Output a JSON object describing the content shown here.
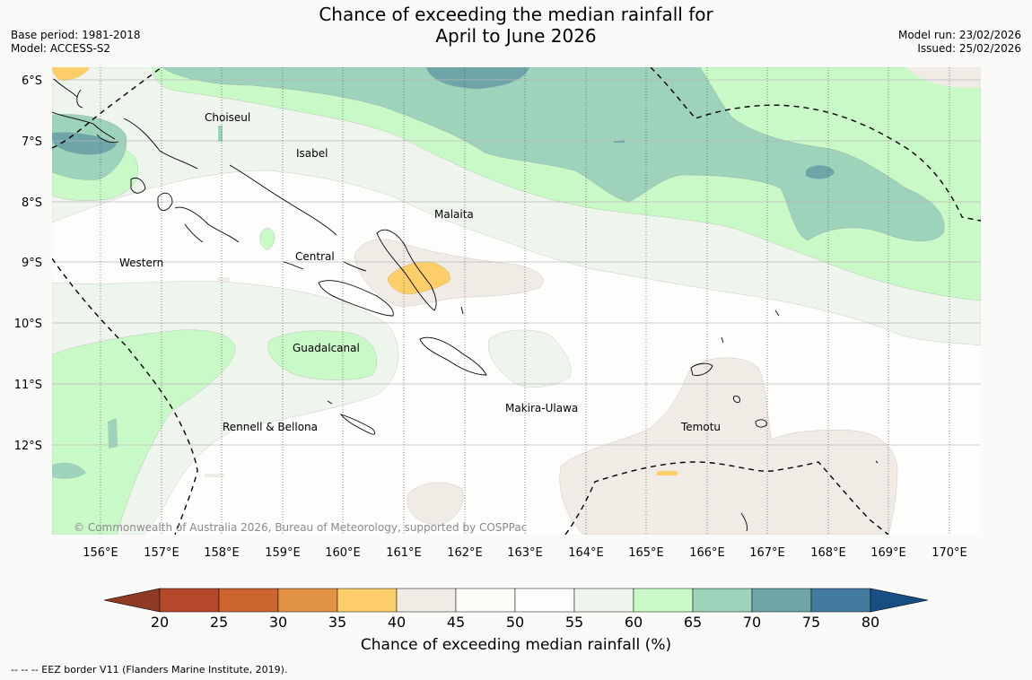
{
  "title_line1": "Chance of exceeding the median rainfall for",
  "title_line2": "April to June 2026",
  "base_period": "Base period: 1981-2018",
  "model": "Model: ACCESS-S2",
  "model_run": "Model run: 23/02/2026",
  "issued": "Issued: 25/02/2026",
  "copyright": "© Commonwealth of Australia 2026, Bureau of Meteorology, supported by COSPPac",
  "lat_labels": [
    "6°S",
    "7°S",
    "8°S",
    "9°S",
    "10°S",
    "11°S",
    "12°S"
  ],
  "lon_labels": [
    "156°E",
    "157°E",
    "158°E",
    "159°E",
    "160°E",
    "161°E",
    "162°E",
    "163°E",
    "164°E",
    "165°E",
    "166°E",
    "167°E",
    "168°E",
    "169°E",
    "170°E"
  ],
  "provinces": [
    "Choiseul",
    "Isabel",
    "Malaita",
    "Western",
    "Central",
    "Guadalcanal",
    "Makira-Ulawa",
    "Rennell & Bellona",
    "Temotu"
  ],
  "colorbar": {
    "title": "Chance of exceeding median rainfall (%)",
    "ticks": [
      "20",
      "25",
      "30",
      "35",
      "40",
      "45",
      "50",
      "55",
      "60",
      "65",
      "70",
      "75",
      "80"
    ],
    "colors": [
      "#8f3a22",
      "#b5482a",
      "#cd6531",
      "#e19244",
      "#fece6b",
      "#f1ebe6",
      "#fbfbf8",
      "#fdfdfc",
      "#edf5ec",
      "#caf9c8",
      "#9dd2bb",
      "#6ea5a8",
      "#427b9d",
      "#174f85"
    ]
  },
  "legend_note": "-- -- -- EEZ border V11 (Flanders Marine Institute, 2019)."
}
